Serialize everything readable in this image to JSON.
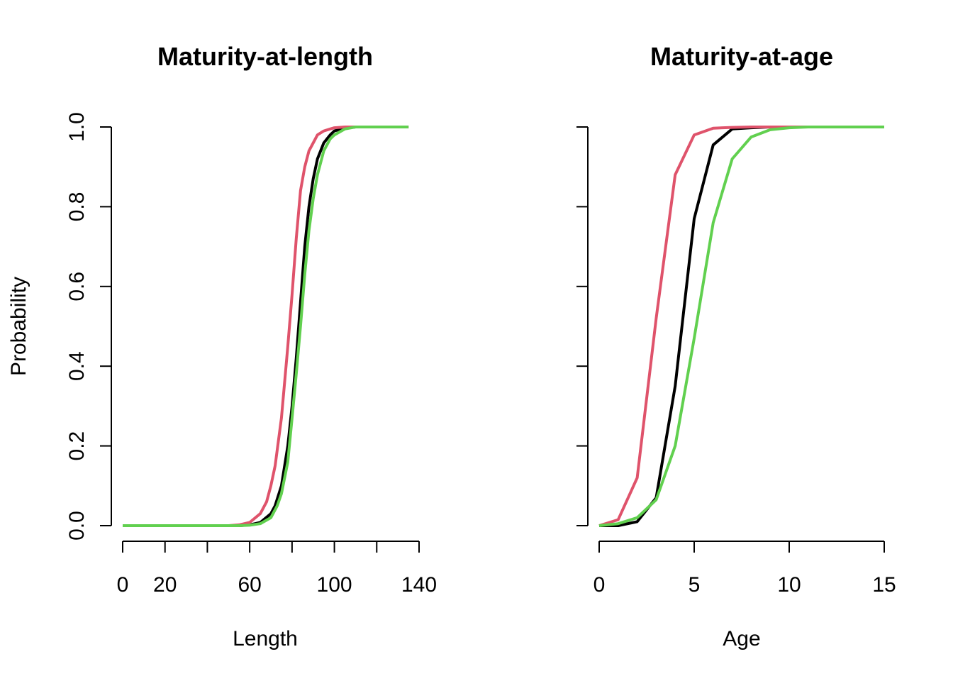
{
  "chart_data": [
    {
      "type": "line",
      "title": "Maturity-at-length",
      "xlabel": "Length",
      "ylabel": "Probability",
      "xlim": [
        0,
        140
      ],
      "ylim": [
        0,
        1
      ],
      "xticks": [
        0,
        20,
        40,
        60,
        80,
        100,
        120,
        140
      ],
      "xtick_labels": [
        "0",
        "20",
        "",
        "60",
        "",
        "100",
        "",
        "140"
      ],
      "yticks": [
        0,
        0.2,
        0.4,
        0.6,
        0.8,
        1.0
      ],
      "ytick_labels": [
        "0.0",
        "0.2",
        "0.4",
        "0.6",
        "0.8",
        "1.0"
      ],
      "grid": false,
      "series": [
        {
          "color": "#000000",
          "x": [
            0,
            10,
            20,
            30,
            40,
            50,
            55,
            60,
            65,
            70,
            72,
            75,
            78,
            80,
            82,
            84,
            86,
            88,
            90,
            92,
            95,
            98,
            100,
            105,
            110,
            120,
            135
          ],
          "y": [
            0,
            0,
            0,
            0,
            0,
            0,
            0,
            0.002,
            0.008,
            0.03,
            0.05,
            0.1,
            0.2,
            0.3,
            0.42,
            0.56,
            0.7,
            0.8,
            0.87,
            0.92,
            0.96,
            0.98,
            0.99,
            0.997,
            1.0,
            1.0,
            1.0
          ]
        },
        {
          "color": "#DF536B",
          "x": [
            0,
            10,
            20,
            30,
            40,
            50,
            55,
            60,
            65,
            68,
            70,
            72,
            75,
            78,
            80,
            82,
            84,
            86,
            88,
            90,
            92,
            95,
            98,
            100,
            105,
            110,
            120,
            135
          ],
          "y": [
            0,
            0,
            0,
            0,
            0,
            0,
            0.002,
            0.008,
            0.03,
            0.06,
            0.1,
            0.15,
            0.27,
            0.45,
            0.58,
            0.72,
            0.84,
            0.9,
            0.94,
            0.96,
            0.98,
            0.99,
            0.995,
            0.998,
            1.0,
            1.0,
            1.0,
            1.0
          ]
        },
        {
          "color": "#61D04F",
          "x": [
            0,
            10,
            20,
            30,
            40,
            50,
            55,
            60,
            65,
            70,
            73,
            75,
            78,
            80,
            82,
            84,
            86,
            88,
            90,
            92,
            95,
            98,
            100,
            105,
            110,
            120,
            135
          ],
          "y": [
            0,
            0,
            0,
            0,
            0,
            0,
            0,
            0.001,
            0.005,
            0.02,
            0.05,
            0.08,
            0.16,
            0.27,
            0.38,
            0.5,
            0.63,
            0.74,
            0.82,
            0.88,
            0.94,
            0.97,
            0.98,
            0.995,
            1.0,
            1.0,
            1.0
          ]
        }
      ]
    },
    {
      "type": "line",
      "title": "Maturity-at-age",
      "xlabel": "Age",
      "ylabel": "",
      "xlim": [
        0,
        15
      ],
      "ylim": [
        0,
        1
      ],
      "xticks": [
        0,
        5,
        10,
        15
      ],
      "xtick_labels": [
        "0",
        "5",
        "10",
        "15"
      ],
      "yticks": [
        0,
        0.2,
        0.4,
        0.6,
        0.8,
        1.0
      ],
      "ytick_labels": [],
      "grid": false,
      "series": [
        {
          "color": "#000000",
          "x": [
            0,
            1,
            2,
            3,
            4,
            5,
            6,
            7,
            8,
            9,
            10,
            11,
            12,
            13,
            14,
            15
          ],
          "y": [
            0,
            0,
            0.01,
            0.07,
            0.35,
            0.77,
            0.955,
            0.995,
            0.998,
            1.0,
            1.0,
            1.0,
            1.0,
            1.0,
            1.0,
            1.0
          ]
        },
        {
          "color": "#DF536B",
          "x": [
            0,
            1,
            2,
            3,
            4,
            5,
            6,
            7,
            8,
            9,
            10,
            11,
            12,
            13,
            14,
            15
          ],
          "y": [
            0,
            0.015,
            0.12,
            0.52,
            0.88,
            0.98,
            0.997,
            0.999,
            1.0,
            1.0,
            1.0,
            1.0,
            1.0,
            1.0,
            1.0,
            1.0
          ]
        },
        {
          "color": "#61D04F",
          "x": [
            0,
            1,
            2,
            3,
            4,
            5,
            6,
            7,
            8,
            9,
            10,
            11,
            12,
            13,
            14,
            15
          ],
          "y": [
            0,
            0.005,
            0.02,
            0.065,
            0.2,
            0.47,
            0.76,
            0.92,
            0.975,
            0.993,
            0.998,
            1.0,
            1.0,
            1.0,
            1.0,
            1.0
          ]
        }
      ]
    }
  ]
}
